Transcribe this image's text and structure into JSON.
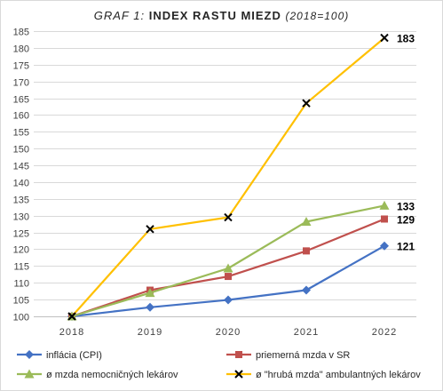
{
  "chart_data": {
    "type": "line",
    "title_prefix": "GRAF 1:",
    "title_main": "INDEX RASTU MIEZD",
    "title_suffix": "(2018=100)",
    "x": [
      "2018",
      "2019",
      "2020",
      "2021",
      "2022"
    ],
    "ylim": [
      100,
      185
    ],
    "ystep": 5,
    "grid": true,
    "series": [
      {
        "name": "inflácia (CPI)",
        "values": [
          100,
          102.7,
          104.9,
          107.8,
          121
        ],
        "color": "#4472c4",
        "marker": "diamond",
        "end_label": "121"
      },
      {
        "name": "priemerná mzda v SR",
        "values": [
          100,
          107.8,
          111.9,
          119.5,
          129
        ],
        "color": "#c0504d",
        "marker": "square",
        "end_label": "129"
      },
      {
        "name": "ø mzda nemocničných lekárov",
        "values": [
          100,
          107,
          114.3,
          128.2,
          133
        ],
        "color": "#9bbb59",
        "marker": "triangle",
        "end_label": "133"
      },
      {
        "name": "ø \"hrubá mzda\" ambulantných lekárov",
        "values": [
          100,
          126,
          129.5,
          163.5,
          183
        ],
        "color": "#ffc000",
        "marker": "cross",
        "end_label": "183"
      }
    ],
    "legend_position": "bottom"
  }
}
